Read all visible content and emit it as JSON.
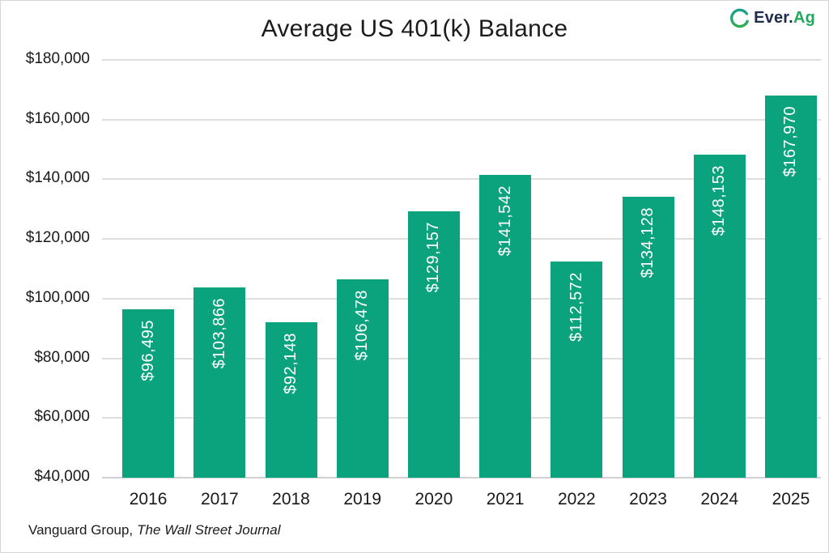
{
  "page": {
    "background": "#ffffff",
    "border_color": "#d6d6d6"
  },
  "header": {
    "title": "Average US 401(k) Balance",
    "logo": {
      "name": "Ever.Ag",
      "text_primary": "Ever.",
      "text_secondary": "Ag",
      "primary_color": "#1f2c4e",
      "secondary_color": "#21a95c",
      "icon": "ever-ag-e-icon",
      "icon_color_top": "#1d9e8f",
      "icon_color_bottom": "#2fae54"
    }
  },
  "chart_data": {
    "type": "bar",
    "title": "Average US 401(k) Balance",
    "categories": [
      "2016",
      "2017",
      "2018",
      "2019",
      "2020",
      "2021",
      "2022",
      "2023",
      "2024",
      "2025"
    ],
    "values": [
      96495,
      103866,
      92148,
      106478,
      129157,
      141542,
      112572,
      134128,
      148153,
      167970
    ],
    "value_labels": [
      "$96,495",
      "$103,866",
      "$92,148",
      "$106,478",
      "$129,157",
      "$141,542",
      "$112,572",
      "$134,128",
      "$148,153",
      "$167,970"
    ],
    "xlabel": "",
    "ylabel": "",
    "ylim": [
      40000,
      180000
    ],
    "ytick_step": 20000,
    "yticks": [
      40000,
      60000,
      80000,
      100000,
      120000,
      140000,
      160000,
      180000
    ],
    "ytick_labels": [
      "$40,000",
      "$60,000",
      "$80,000",
      "$100,000",
      "$120,000",
      "$140,000",
      "$160,000",
      "$180,000"
    ],
    "bar_color": "#0ba27e",
    "grid": true,
    "gridline_color": "#dedede",
    "value_label_color": "#ffffff",
    "value_label_rotation": -90,
    "legend": "none"
  },
  "footer": {
    "source_regular": "Vanguard Group,",
    "source_italic": "The Wall Street Journal"
  }
}
